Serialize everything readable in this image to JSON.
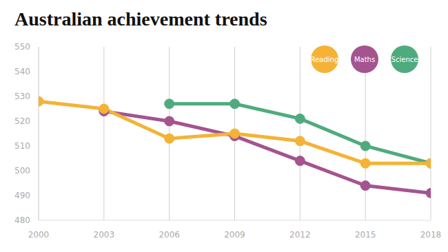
{
  "chart_data": {
    "type": "line",
    "title": "Australian achievement trends",
    "x": [
      2000,
      2003,
      2006,
      2009,
      2012,
      2015,
      2018
    ],
    "xlim": [
      2000,
      2018
    ],
    "xticks": [
      2000,
      2003,
      2006,
      2009,
      2012,
      2015,
      2018
    ],
    "ylim": [
      480,
      550
    ],
    "yticks": [
      480,
      490,
      500,
      510,
      520,
      530,
      540,
      550
    ],
    "grid": "x",
    "legend": "upper right",
    "marker": "circle",
    "series": [
      {
        "name": "Reading",
        "color": "#f4b337",
        "values": [
          528,
          525,
          513,
          515,
          512,
          503,
          503
        ]
      },
      {
        "name": "Maths",
        "color": "#a4548f",
        "values": [
          null,
          524,
          520,
          514,
          504,
          494,
          491
        ]
      },
      {
        "name": "Science",
        "color": "#4fab7d",
        "values": [
          null,
          null,
          527,
          527,
          521,
          510,
          503
        ]
      }
    ]
  }
}
